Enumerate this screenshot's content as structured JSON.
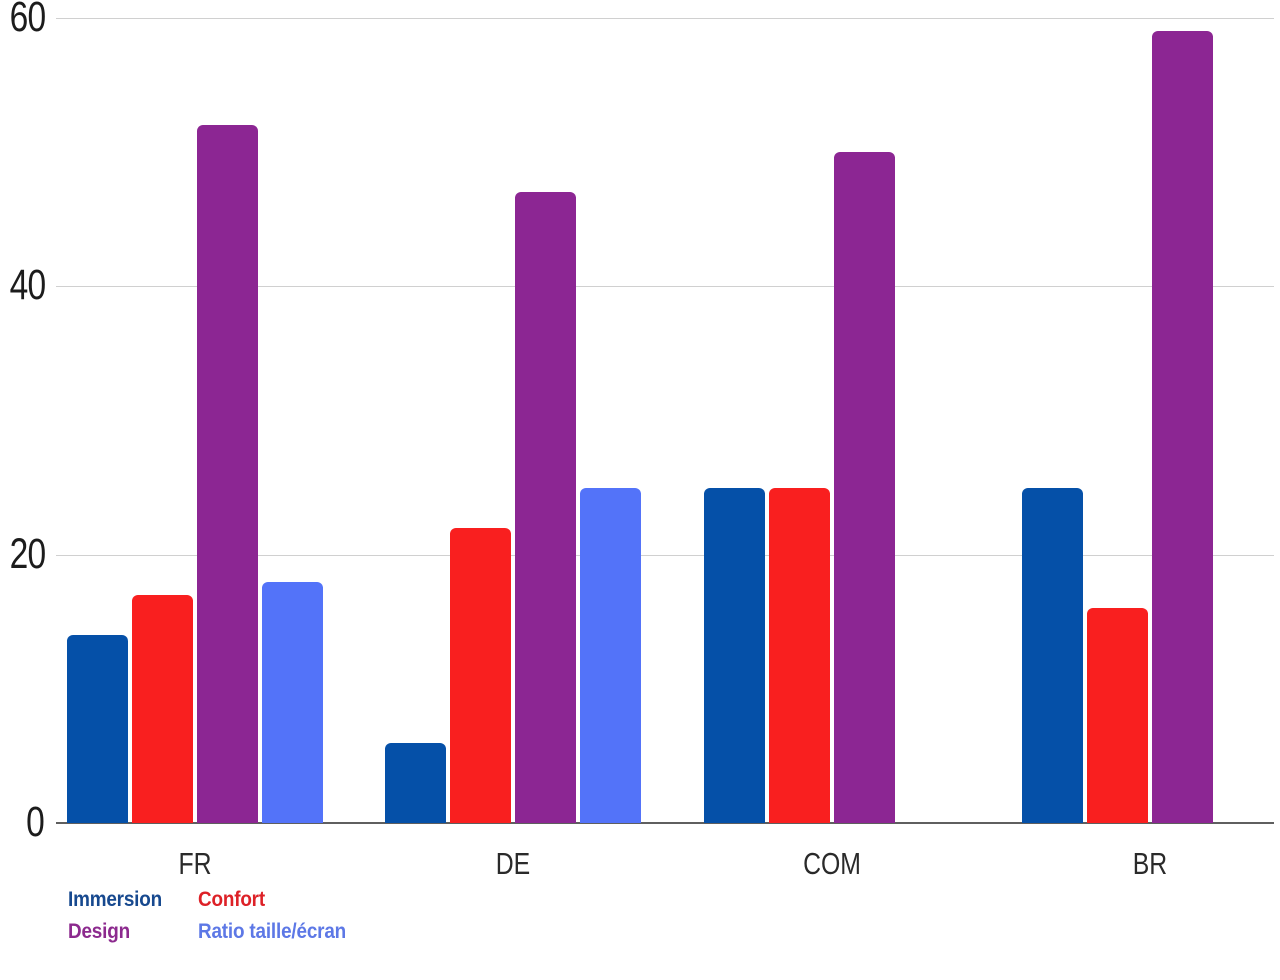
{
  "chart_data": {
    "type": "bar",
    "title": "",
    "xlabel": "",
    "ylabel": "",
    "categories": [
      "FR",
      "DE",
      "COM",
      "BR"
    ],
    "series": [
      {
        "name": "Immersion",
        "color": "#0550a8",
        "legend_color": "#17498f",
        "values": [
          14,
          6,
          25,
          25
        ]
      },
      {
        "name": "Confort",
        "color": "#f91f1f",
        "legend_color": "#dd2127",
        "values": [
          17,
          22,
          25,
          16
        ]
      },
      {
        "name": "Design",
        "color": "#8c2693",
        "legend_color": "#8c2a8e",
        "values": [
          52,
          47,
          50,
          59
        ]
      },
      {
        "name": "Ratio taille/écran",
        "color": "#5373f9",
        "legend_color": "#5d78e6",
        "values": [
          18,
          25,
          0,
          0
        ]
      }
    ],
    "ylim": [
      0,
      60
    ],
    "yticks": [
      0,
      20,
      40,
      60
    ],
    "grid": "horizontal",
    "legend_position": "bottom-left",
    "background": "#ffffff"
  }
}
